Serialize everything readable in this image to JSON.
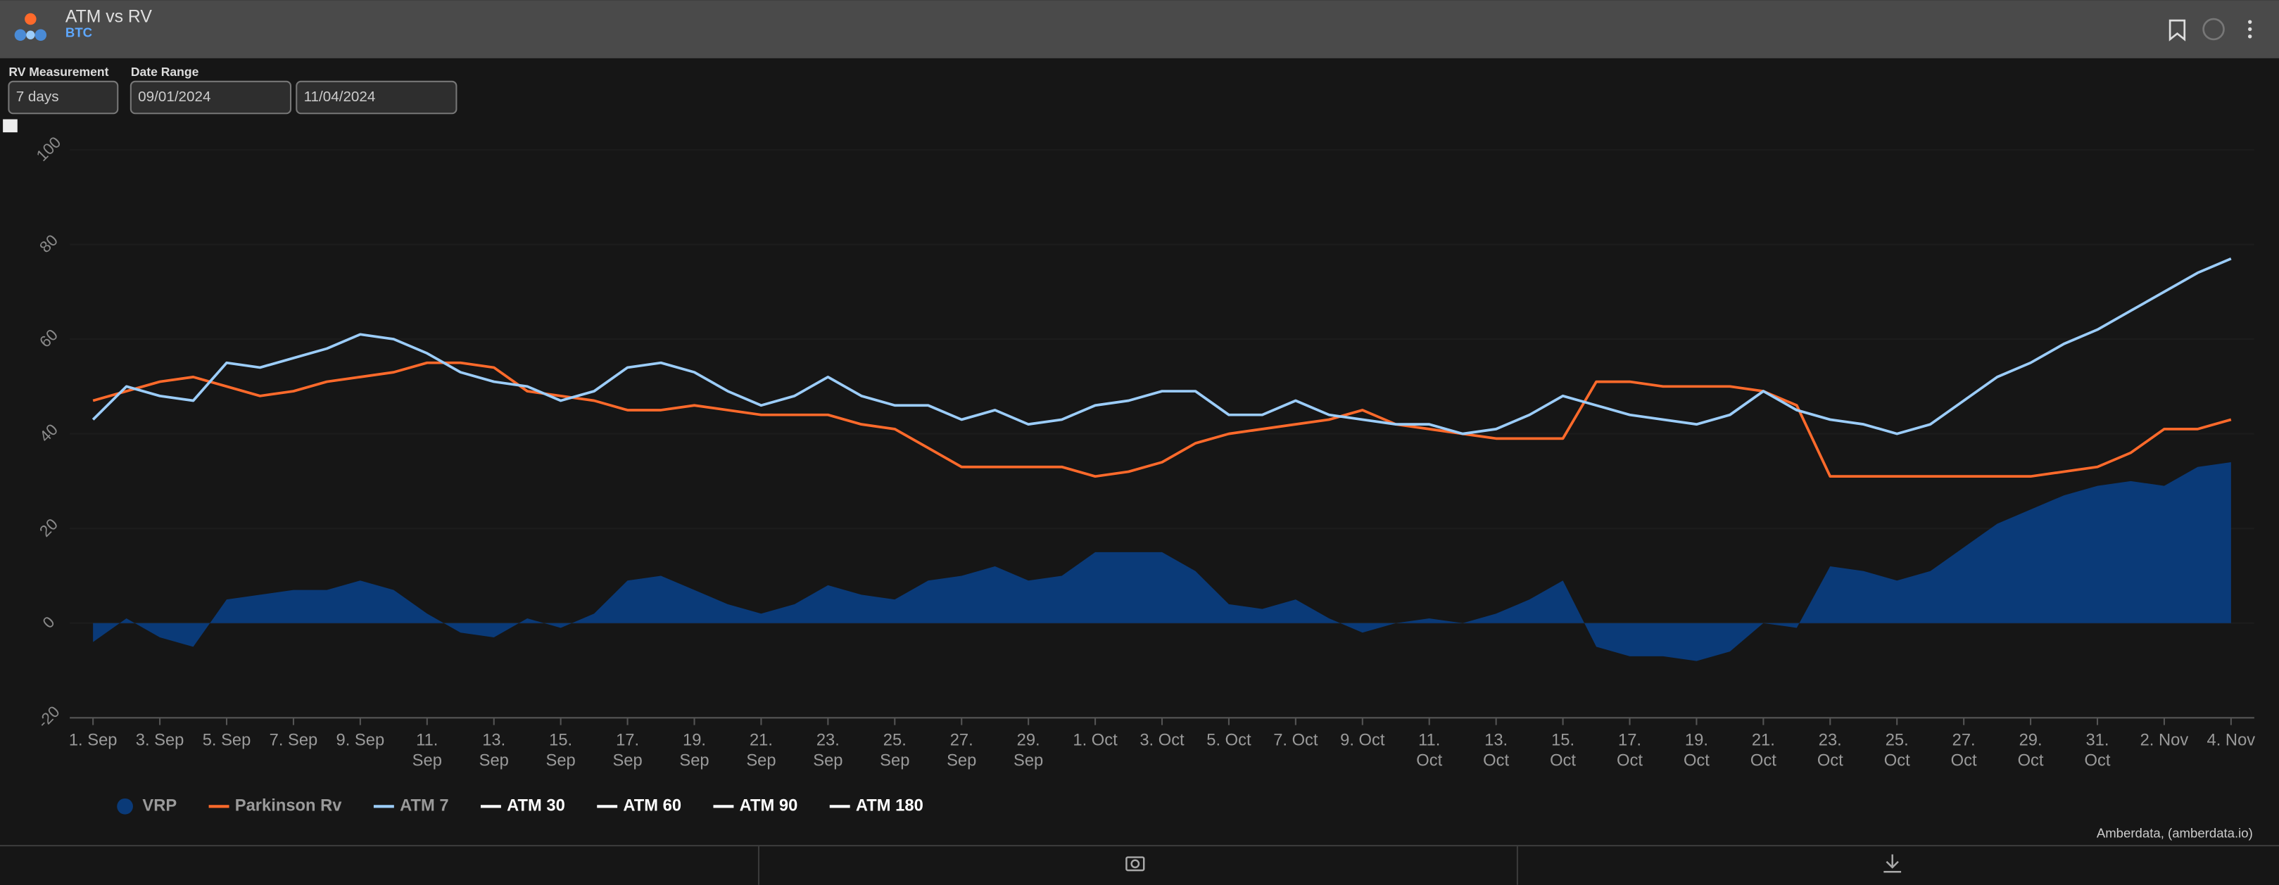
{
  "header": {
    "title": "ATM vs RV",
    "subtitle": "BTC"
  },
  "controls": {
    "rv_label": "RV Measurement",
    "rv_value": "7 days",
    "range_label": "Date Range",
    "start": "09/01/2024",
    "end": "11/04/2024"
  },
  "chart_data": {
    "type": "line",
    "categories": [
      "1. Sep",
      null,
      "3. Sep",
      null,
      "5. Sep",
      null,
      "7. Sep",
      null,
      "9. Sep",
      null,
      "11. Sep",
      null,
      "13. Sep",
      null,
      "15. Sep",
      null,
      "17. Sep",
      null,
      "19. Sep",
      null,
      "21. Sep",
      null,
      "23. Sep",
      null,
      "25. Sep",
      null,
      "27. Sep",
      null,
      "29. Sep",
      null,
      "1. Oct",
      null,
      "3. Oct",
      null,
      "5. Oct",
      null,
      "7. Oct",
      null,
      "9. Oct",
      null,
      "11. Oct",
      null,
      "13. Oct",
      null,
      "15. Oct",
      null,
      "17. Oct",
      null,
      "19. Oct",
      null,
      "21. Oct",
      null,
      "23. Oct",
      null,
      "25. Oct",
      null,
      "27. Oct",
      null,
      "29. Oct",
      null,
      "31. Oct",
      null,
      "2. Nov",
      null,
      "4. Nov"
    ],
    "series": [
      {
        "name": "VRP",
        "color": "#0a3a78",
        "kind": "area",
        "values": [
          -4,
          1,
          -3,
          -5,
          5,
          6,
          7,
          7,
          9,
          7,
          2,
          -2,
          -3,
          1,
          -1,
          2,
          9,
          10,
          7,
          4,
          2,
          4,
          8,
          6,
          5,
          9,
          10,
          12,
          9,
          10,
          15,
          15,
          15,
          11,
          4,
          3,
          5,
          1,
          -2,
          0,
          1,
          0,
          2,
          5,
          9,
          -5,
          -7,
          -7,
          -8,
          -6,
          0,
          -1,
          12,
          11,
          9,
          11,
          16,
          21,
          24,
          27,
          29,
          30,
          29,
          33,
          34
        ]
      },
      {
        "name": "Parkinson Rv",
        "color": "#ff6a2b",
        "kind": "line",
        "values": [
          47,
          49,
          51,
          52,
          50,
          48,
          49,
          51,
          52,
          53,
          55,
          55,
          54,
          49,
          48,
          47,
          45,
          45,
          46,
          45,
          44,
          44,
          44,
          42,
          41,
          37,
          33,
          33,
          33,
          33,
          31,
          32,
          34,
          38,
          40,
          41,
          42,
          43,
          45,
          42,
          41,
          40,
          39,
          39,
          39,
          51,
          51,
          50,
          50,
          50,
          49,
          46,
          31,
          31,
          31,
          31,
          31,
          31,
          31,
          32,
          33,
          36,
          41,
          41,
          43
        ]
      },
      {
        "name": "ATM 7",
        "color": "#9ccdfa",
        "kind": "line",
        "values": [
          43,
          50,
          48,
          47,
          55,
          54,
          56,
          58,
          61,
          60,
          57,
          53,
          51,
          50,
          47,
          49,
          54,
          55,
          53,
          49,
          46,
          48,
          52,
          48,
          46,
          46,
          43,
          45,
          42,
          43,
          46,
          47,
          49,
          49,
          44,
          44,
          47,
          44,
          43,
          42,
          42,
          40,
          41,
          44,
          48,
          46,
          44,
          43,
          42,
          44,
          49,
          45,
          43,
          42,
          40,
          42,
          47,
          52,
          55,
          59,
          62,
          66,
          70,
          74,
          77
        ]
      },
      {
        "name": "ATM 30",
        "color": "#ffffff"
      },
      {
        "name": "ATM 60",
        "color": "#ffffff"
      },
      {
        "name": "ATM 90",
        "color": "#ffffff"
      },
      {
        "name": "ATM 180",
        "color": "#ffffff"
      }
    ],
    "ylim": [
      -20,
      100
    ],
    "yticks": [
      -20,
      0,
      20,
      40,
      60,
      80,
      100
    ],
    "credit": "Amberdata, (amberdata.io)"
  }
}
